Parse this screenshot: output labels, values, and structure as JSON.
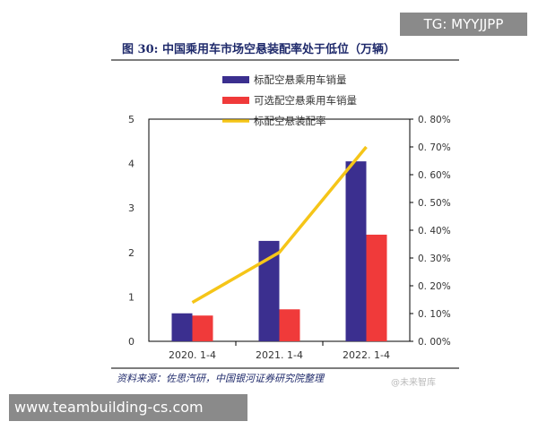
{
  "overlay": {
    "tg": "TG: MYYJJPP",
    "site": "www.teambuilding-cs.com",
    "watermark": "@未来智库"
  },
  "source": "资料来源：佐思汽研，中国银河证券研究院整理",
  "chart_data": {
    "type": "bar",
    "title": "图 30:  中国乘用车市场空悬装配率处于低位（万辆）",
    "categories": [
      "2020. 1-4",
      "2021. 1-4",
      "2022. 1-4"
    ],
    "series": [
      {
        "name": "标配空悬乘用车销量",
        "type": "bar",
        "axis": "left",
        "color": "#3b2f8f",
        "values": [
          0.63,
          2.26,
          4.05
        ]
      },
      {
        "name": "可选配空悬乘用车销量",
        "type": "bar",
        "axis": "left",
        "color": "#f03a3a",
        "values": [
          0.58,
          0.72,
          2.4
        ]
      },
      {
        "name": "标配空悬装配率",
        "type": "line",
        "axis": "right",
        "color": "#f5c518",
        "values": [
          0.14,
          0.32,
          0.7
        ]
      }
    ],
    "left_axis": {
      "ylim": [
        0,
        5
      ],
      "ticks": [
        "0",
        "1",
        "2",
        "3",
        "4",
        "5"
      ]
    },
    "right_axis": {
      "ylim": [
        0,
        0.8
      ],
      "unit": "%",
      "ticks": [
        "0. 00%",
        "0. 10%",
        "0. 20%",
        "0. 30%",
        "0. 40%",
        "0. 50%",
        "0. 60%",
        "0. 70%",
        "0. 80%"
      ]
    },
    "legend": "top-center",
    "grid": false
  }
}
